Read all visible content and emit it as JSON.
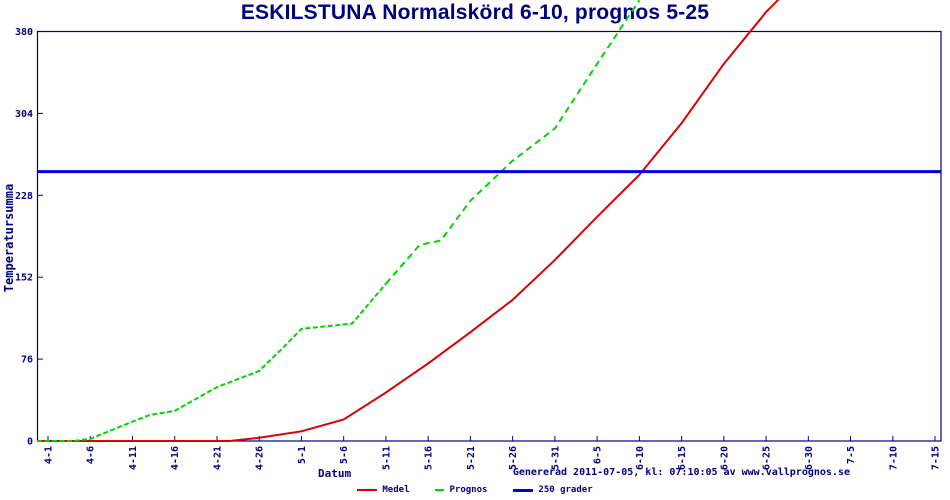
{
  "footer": "Genererad 2011-07-05, kl: 07:10:05 av www.vallprognos.se",
  "colors": {
    "title": "#000080",
    "axis": "#000080",
    "tick_text": "#000080",
    "background": "#ffffff",
    "medel_red": "#dd0000",
    "prognos_green": "#00d400",
    "grader_blue": "#0000dd"
  },
  "chart_data": {
    "type": "line",
    "title": "ESKILSTUNA Normalskörd 6-10, prognos 5-25",
    "xlabel": "Datum",
    "ylabel": "Temperatursumma",
    "x_tick_labels": [
      "4-1",
      "4-6",
      "4-11",
      "4-16",
      "4-21",
      "4-26",
      "5-1",
      "5-6",
      "5-11",
      "5-16",
      "5-21",
      "5-26",
      "5-31",
      "6-5",
      "6-10",
      "6-15",
      "6-20",
      "6-25",
      "6-30",
      "7-5",
      "7-10",
      "7-15"
    ],
    "x_tick_days": [
      0,
      5,
      10,
      15,
      20,
      25,
      30,
      35,
      40,
      45,
      50,
      55,
      60,
      65,
      70,
      75,
      80,
      85,
      90,
      95,
      100,
      105
    ],
    "y_ticks": [
      0,
      76,
      152,
      228,
      304,
      380
    ],
    "ylim": [
      0,
      380
    ],
    "xlim_days": [
      -1.3,
      105.7
    ],
    "grid": false,
    "legend_position": "bottom-center",
    "series": [
      {
        "name": "Medel",
        "color": "#dd0000",
        "style": "solid",
        "width": 2,
        "x_days": [
          -1.3,
          0,
          5,
          10,
          15,
          20,
          21.5,
          25,
          30,
          35,
          40,
          45,
          50,
          55,
          60,
          65,
          70,
          75,
          80,
          85,
          86.5
        ],
        "values": [
          0,
          0,
          0,
          0,
          0,
          0,
          0,
          3,
          9,
          20,
          45,
          72,
          101,
          131,
          168,
          208,
          247,
          295,
          350,
          398,
          410
        ]
      },
      {
        "name": "Prognos",
        "color": "#00d400",
        "style": "dashed",
        "width": 2,
        "x_days": [
          -1.3,
          0,
          3,
          5,
          10,
          12,
          15,
          20,
          25,
          28,
          30,
          36,
          40,
          44,
          46.5,
          50,
          55,
          60,
          65,
          70
        ],
        "values": [
          0,
          0,
          0,
          2,
          18,
          24,
          28,
          50,
          65,
          88,
          104,
          109,
          146,
          182,
          186,
          223,
          260,
          290,
          350,
          409
        ]
      },
      {
        "name": "250 grader",
        "color": "#0000dd",
        "style": "solid",
        "width": 3,
        "kind": "hline",
        "value": 250
      }
    ]
  }
}
